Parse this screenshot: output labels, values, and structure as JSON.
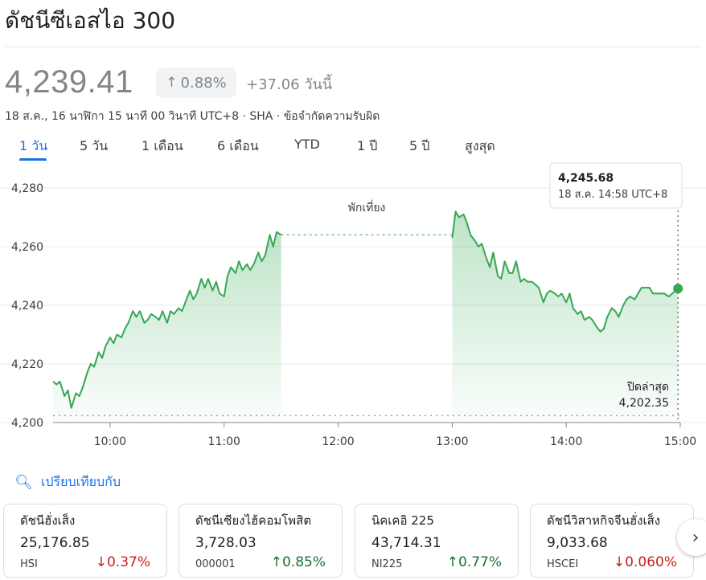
{
  "header": {
    "title": "ดัชนีซีเอสไอ 300"
  },
  "quote": {
    "price": "4,239.41",
    "change_pct": "0.88%",
    "change_abs": "+37.06 วันนี้",
    "meta": "18 ส.ค., 16 นาฬิกา 15 นาที 00 วินาที UTC+8 · SHA · ข้อจำกัดความรับผิด"
  },
  "tabs": [
    {
      "label": "1 วัน",
      "active": true
    },
    {
      "label": "5 วัน"
    },
    {
      "label": "1 เดือน"
    },
    {
      "label": "6 เดือน"
    },
    {
      "label": "YTD"
    },
    {
      "label": "1 ปี"
    },
    {
      "label": "5 ปี"
    },
    {
      "label": "สูงสุด"
    }
  ],
  "chart_data": {
    "type": "area",
    "ylim": [
      4200,
      4280
    ],
    "y_ticks": [
      "4,280",
      "4,260",
      "4,240",
      "4,220",
      "4,200"
    ],
    "x_ticks": [
      "10:00",
      "11:00",
      "12:00",
      "13:00",
      "14:00",
      "15:00"
    ],
    "lunch_label": "พักเที่ยง",
    "prev_close_label": "ปิดล่าสุด",
    "prev_close_value": "4,202.35",
    "prev_close": 4202.35,
    "tooltip": {
      "value": "4,245.68",
      "time": "18 ส.ค. 14:58 UTC+8"
    },
    "line_color": "#34a853",
    "series": [
      {
        "morning": [
          [
            9.5,
            4214
          ],
          [
            9.53,
            4213
          ],
          [
            9.56,
            4214
          ],
          [
            9.6,
            4209
          ],
          [
            9.63,
            4211
          ],
          [
            9.66,
            4205
          ],
          [
            9.7,
            4210
          ],
          [
            9.73,
            4209
          ],
          [
            9.76,
            4212
          ],
          [
            9.8,
            4217
          ],
          [
            9.83,
            4220
          ],
          [
            9.86,
            4219
          ],
          [
            9.9,
            4224
          ],
          [
            9.93,
            4222
          ],
          [
            9.96,
            4226
          ],
          [
            10.0,
            4229
          ],
          [
            10.03,
            4227
          ],
          [
            10.06,
            4230
          ],
          [
            10.1,
            4229
          ],
          [
            10.13,
            4232
          ],
          [
            10.16,
            4234
          ],
          [
            10.2,
            4238
          ],
          [
            10.23,
            4236
          ],
          [
            10.26,
            4238
          ],
          [
            10.3,
            4234
          ],
          [
            10.33,
            4235
          ],
          [
            10.36,
            4237
          ],
          [
            10.4,
            4236
          ],
          [
            10.43,
            4235
          ],
          [
            10.46,
            4238
          ],
          [
            10.5,
            4234
          ],
          [
            10.53,
            4238
          ],
          [
            10.56,
            4237
          ],
          [
            10.6,
            4239
          ],
          [
            10.63,
            4238
          ],
          [
            10.66,
            4241
          ],
          [
            10.7,
            4245
          ],
          [
            10.73,
            4242
          ],
          [
            10.76,
            4244
          ],
          [
            10.8,
            4249
          ],
          [
            10.83,
            4246
          ],
          [
            10.86,
            4249
          ],
          [
            10.9,
            4245
          ],
          [
            10.93,
            4248
          ],
          [
            10.96,
            4244
          ],
          [
            11.0,
            4243
          ],
          [
            11.03,
            4250
          ],
          [
            11.06,
            4253
          ],
          [
            11.1,
            4251
          ],
          [
            11.13,
            4255
          ],
          [
            11.16,
            4252
          ],
          [
            11.2,
            4254
          ],
          [
            11.23,
            4252
          ],
          [
            11.26,
            4254
          ],
          [
            11.3,
            4258
          ],
          [
            11.33,
            4255
          ],
          [
            11.36,
            4257
          ],
          [
            11.4,
            4264
          ],
          [
            11.43,
            4260
          ],
          [
            11.46,
            4265
          ],
          [
            11.5,
            4264
          ]
        ],
        "afternoon": [
          [
            13.0,
            4263
          ],
          [
            13.03,
            4272
          ],
          [
            13.06,
            4270
          ],
          [
            13.1,
            4271
          ],
          [
            13.13,
            4268
          ],
          [
            13.16,
            4264
          ],
          [
            13.2,
            4262
          ],
          [
            13.23,
            4260
          ],
          [
            13.26,
            4261
          ],
          [
            13.3,
            4256
          ],
          [
            13.33,
            4253
          ],
          [
            13.36,
            4258
          ],
          [
            13.4,
            4250
          ],
          [
            13.43,
            4249
          ],
          [
            13.46,
            4255
          ],
          [
            13.5,
            4251
          ],
          [
            13.53,
            4251
          ],
          [
            13.56,
            4255
          ],
          [
            13.6,
            4248
          ],
          [
            13.63,
            4249
          ],
          [
            13.66,
            4248
          ],
          [
            13.7,
            4248
          ],
          [
            13.73,
            4247
          ],
          [
            13.76,
            4246
          ],
          [
            13.8,
            4241
          ],
          [
            13.83,
            4244
          ],
          [
            13.86,
            4245
          ],
          [
            13.9,
            4244
          ],
          [
            13.93,
            4243
          ],
          [
            13.96,
            4244
          ],
          [
            14.0,
            4241
          ],
          [
            14.03,
            4244
          ],
          [
            14.06,
            4239
          ],
          [
            14.1,
            4237
          ],
          [
            14.13,
            4238
          ],
          [
            14.16,
            4235
          ],
          [
            14.2,
            4236
          ],
          [
            14.23,
            4235
          ],
          [
            14.26,
            4233
          ],
          [
            14.3,
            4231
          ],
          [
            14.33,
            4232
          ],
          [
            14.36,
            4236
          ],
          [
            14.4,
            4239
          ],
          [
            14.43,
            4238
          ],
          [
            14.46,
            4236
          ],
          [
            14.5,
            4240
          ],
          [
            14.53,
            4242
          ],
          [
            14.56,
            4243
          ],
          [
            14.6,
            4242
          ],
          [
            14.63,
            4244
          ],
          [
            14.66,
            4246
          ],
          [
            14.7,
            4246
          ],
          [
            14.73,
            4246
          ],
          [
            14.76,
            4244
          ],
          [
            14.8,
            4244
          ],
          [
            14.83,
            4244
          ],
          [
            14.86,
            4244
          ],
          [
            14.9,
            4243
          ],
          [
            14.93,
            4244
          ],
          [
            14.96,
            4245
          ],
          [
            14.98,
            4245.68
          ]
        ]
      }
    ]
  },
  "compare": {
    "label": "เปรียบเทียบกับ"
  },
  "cards": [
    {
      "name": "ดัชนีฮั่งเส็ง",
      "value": "25,176.85",
      "symbol": "HSI",
      "change": "0.37%",
      "direction": "down"
    },
    {
      "name": "ดัชนีเซียงไฮ้คอมโพสิต",
      "value": "3,728.03",
      "symbol": "000001",
      "change": "0.85%",
      "direction": "up"
    },
    {
      "name": "นิคเคอิ 225",
      "value": "43,714.31",
      "symbol": "NI225",
      "change": "0.77%",
      "direction": "up"
    },
    {
      "name": "ดัชนีวิสาหกิจจีนฮั่งเส็ง",
      "value": "9,033.68",
      "symbol": "HSCEI",
      "change": "0.060%",
      "direction": "down"
    }
  ]
}
